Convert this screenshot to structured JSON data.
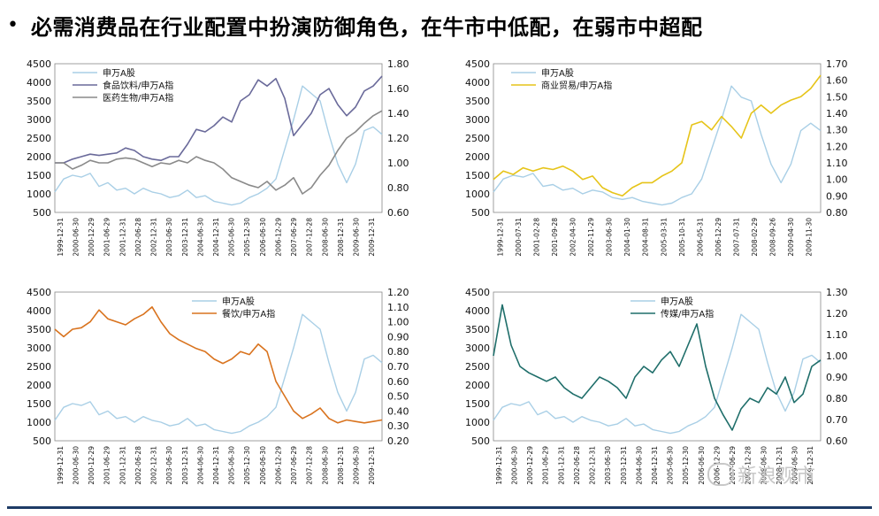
{
  "page": {
    "bullet": "•",
    "title": "必需消费品在行业配置中扮演防御角色，在牛市中低配，在弱市中超配",
    "watermark": "新浪观市"
  },
  "colors": {
    "a_share": "#a9cfe6",
    "food": "#6a6a9a",
    "pharma": "#8a8a8a",
    "retail": "#e6c419",
    "catering": "#d9731e",
    "media": "#1f6e6a"
  },
  "chart_data": [
    {
      "type": "line",
      "legend_position": "top-left",
      "ylim_left": [
        500,
        4500
      ],
      "yticks_left": [
        "500",
        "1000",
        "1500",
        "2000",
        "2500",
        "3000",
        "3500",
        "4000",
        "4500"
      ],
      "ylim_right": [
        0.6,
        1.8
      ],
      "yticks_right": [
        "0.60",
        "0.80",
        "1.00",
        "1.20",
        "1.40",
        "1.60",
        "1.80"
      ],
      "x_tick_labels": [
        "1999-12-31",
        "2000-06-30",
        "2000-12-29",
        "2001-06-29",
        "2001-12-31",
        "2002-06-28",
        "2002-12-31",
        "2003-06-30",
        "2003-12-31",
        "2004-06-30",
        "2004-12-31",
        "2005-06-30",
        "2005-12-30",
        "2006-06-30",
        "2006-12-29",
        "2007-06-29",
        "2007-12-28",
        "2008-06-30",
        "2008-12-31",
        "2009-06-30",
        "2009-12-31"
      ],
      "series": [
        {
          "name": "申万A股",
          "axis": "left",
          "color": "#a9cfe6",
          "values": [
            1050,
            1400,
            1500,
            1450,
            1550,
            1200,
            1300,
            1100,
            1150,
            1000,
            1150,
            1050,
            1000,
            900,
            950,
            1100,
            900,
            950,
            800,
            750,
            700,
            750,
            900,
            1000,
            1150,
            1400,
            2200,
            3000,
            3900,
            3700,
            3500,
            2600,
            1800,
            1300,
            1800,
            2700,
            2800,
            2600
          ]
        },
        {
          "name": "食品饮料/申万A指",
          "axis": "right",
          "color": "#6a6a9a",
          "values": [
            1.0,
            1.0,
            1.03,
            1.05,
            1.07,
            1.06,
            1.07,
            1.08,
            1.12,
            1.1,
            1.05,
            1.03,
            1.02,
            1.05,
            1.05,
            1.15,
            1.27,
            1.25,
            1.3,
            1.37,
            1.33,
            1.5,
            1.55,
            1.67,
            1.62,
            1.68,
            1.52,
            1.22,
            1.31,
            1.4,
            1.55,
            1.6,
            1.47,
            1.38,
            1.45,
            1.58,
            1.62,
            1.7
          ]
        },
        {
          "name": "医药生物/申万A指",
          "axis": "right",
          "color": "#8a8a8a",
          "values": [
            1.0,
            1.0,
            0.95,
            0.98,
            1.02,
            1.0,
            1.0,
            1.03,
            1.04,
            1.03,
            1.0,
            0.97,
            1.0,
            0.99,
            1.02,
            1.0,
            1.05,
            1.02,
            1.0,
            0.95,
            0.88,
            0.85,
            0.82,
            0.8,
            0.85,
            0.78,
            0.82,
            0.88,
            0.75,
            0.8,
            0.9,
            0.98,
            1.1,
            1.2,
            1.25,
            1.32,
            1.38,
            1.42
          ]
        }
      ]
    },
    {
      "type": "line",
      "legend_position": "top-left",
      "ylim_left": [
        500,
        4500
      ],
      "yticks_left": [
        "500",
        "1000",
        "1500",
        "2000",
        "2500",
        "3000",
        "3500",
        "4000",
        "4500"
      ],
      "ylim_right": [
        0.8,
        1.7
      ],
      "yticks_right": [
        "0.80",
        "0.90",
        "1.00",
        "1.10",
        "1.20",
        "1.30",
        "1.40",
        "1.50",
        "1.60",
        "1.70"
      ],
      "x_tick_labels": [
        "1999-12-31",
        "2000-07-31",
        "2001-02-28",
        "2001-09-28",
        "2002-04-30",
        "2002-11-29",
        "2003-06-30",
        "2004-01-30",
        "2004-08-31",
        "2005-03-31",
        "2005-10-31",
        "2006-05-31",
        "2006-12-29",
        "2007-07-31",
        "2008-02-29",
        "2008-09-26",
        "2009-04-30",
        "2009-11-30"
      ],
      "series": [
        {
          "name": "申万A股",
          "axis": "left",
          "color": "#a9cfe6",
          "values": [
            1050,
            1400,
            1500,
            1450,
            1550,
            1200,
            1250,
            1100,
            1150,
            1000,
            1100,
            1050,
            900,
            850,
            900,
            800,
            750,
            700,
            750,
            900,
            1000,
            1400,
            2200,
            3000,
            3900,
            3600,
            3500,
            2600,
            1800,
            1300,
            1800,
            2700,
            2900,
            2700
          ]
        },
        {
          "name": "商业贸易/申万A指",
          "axis": "right",
          "color": "#e6c419",
          "values": [
            1.0,
            1.05,
            1.03,
            1.07,
            1.05,
            1.07,
            1.06,
            1.08,
            1.05,
            1.0,
            1.02,
            0.95,
            0.92,
            0.9,
            0.95,
            0.98,
            0.98,
            1.02,
            1.05,
            1.1,
            1.33,
            1.35,
            1.3,
            1.38,
            1.32,
            1.25,
            1.4,
            1.45,
            1.4,
            1.45,
            1.48,
            1.5,
            1.55,
            1.63
          ]
        }
      ]
    },
    {
      "type": "line",
      "legend_position": "top-right",
      "ylim_left": [
        500,
        4500
      ],
      "yticks_left": [
        "500",
        "1000",
        "1500",
        "2000",
        "2500",
        "3000",
        "3500",
        "4000",
        "4500"
      ],
      "ylim_right": [
        0.2,
        1.2
      ],
      "yticks_right": [
        "0.20",
        "0.30",
        "0.40",
        "0.50",
        "0.60",
        "0.70",
        "0.80",
        "0.90",
        "1.00",
        "1.10",
        "1.20"
      ],
      "x_tick_labels": [
        "1999-12-31",
        "2000-06-30",
        "2000-12-29",
        "2001-06-29",
        "2001-12-31",
        "2002-06-28",
        "2002-12-31",
        "2003-06-30",
        "2003-12-31",
        "2004-06-30",
        "2004-12-31",
        "2005-06-30",
        "2005-12-30",
        "2006-06-30",
        "2006-12-29",
        "2007-06-29",
        "2007-12-28",
        "2008-06-30",
        "2008-12-31",
        "2009-06-30",
        "2009-12-31"
      ],
      "series": [
        {
          "name": "申万A股",
          "axis": "left",
          "color": "#a9cfe6",
          "values": [
            1050,
            1400,
            1500,
            1450,
            1550,
            1200,
            1300,
            1100,
            1150,
            1000,
            1150,
            1050,
            1000,
            900,
            950,
            1100,
            900,
            950,
            800,
            750,
            700,
            750,
            900,
            1000,
            1150,
            1400,
            2200,
            3000,
            3900,
            3700,
            3500,
            2600,
            1800,
            1300,
            1800,
            2700,
            2800,
            2600
          ]
        },
        {
          "name": "餐饮/申万A指",
          "axis": "right",
          "color": "#d9731e",
          "values": [
            0.95,
            0.9,
            0.95,
            0.96,
            1.0,
            1.08,
            1.02,
            1.0,
            0.98,
            1.02,
            1.05,
            1.1,
            1.0,
            0.92,
            0.88,
            0.85,
            0.82,
            0.8,
            0.75,
            0.72,
            0.75,
            0.8,
            0.78,
            0.85,
            0.8,
            0.6,
            0.5,
            0.4,
            0.35,
            0.38,
            0.42,
            0.35,
            0.32,
            0.34,
            0.33,
            0.32,
            0.33,
            0.34
          ]
        }
      ]
    },
    {
      "type": "line",
      "legend_position": "top-right",
      "ylim_left": [
        500,
        4500
      ],
      "yticks_left": [
        "500",
        "1000",
        "1500",
        "2000",
        "2500",
        "3000",
        "3500",
        "4000",
        "4500"
      ],
      "ylim_right": [
        0.6,
        1.3
      ],
      "yticks_right": [
        "0.60",
        "0.70",
        "0.80",
        "0.90",
        "1.00",
        "1.10",
        "1.20",
        "1.30"
      ],
      "x_tick_labels": [
        "1999-12-31",
        "2000-06-30",
        "2000-12-29",
        "2001-06-29",
        "2001-12-31",
        "2002-06-28",
        "2002-12-31",
        "2003-06-30",
        "2003-12-31",
        "2004-06-30",
        "2004-12-31",
        "2005-06-30",
        "2005-12-30",
        "2006-06-30",
        "2006-12-29",
        "2007-06-29",
        "2007-12-28",
        "2008-06-30",
        "2008-12-31",
        "2009-06-30",
        "2009-12-31"
      ],
      "series": [
        {
          "name": "申万A股",
          "axis": "left",
          "color": "#a9cfe6",
          "values": [
            1050,
            1400,
            1500,
            1450,
            1550,
            1200,
            1300,
            1100,
            1150,
            1000,
            1150,
            1050,
            1000,
            900,
            950,
            1100,
            900,
            950,
            800,
            750,
            700,
            750,
            900,
            1000,
            1150,
            1400,
            2200,
            3000,
            3900,
            3700,
            3500,
            2600,
            1800,
            1300,
            1800,
            2700,
            2800,
            2600
          ]
        },
        {
          "name": "传媒/申万A指",
          "axis": "right",
          "color": "#1f6e6a",
          "values": [
            1.0,
            1.24,
            1.05,
            0.95,
            0.92,
            0.9,
            0.88,
            0.9,
            0.85,
            0.82,
            0.8,
            0.85,
            0.9,
            0.88,
            0.85,
            0.8,
            0.9,
            0.95,
            0.92,
            0.98,
            1.02,
            0.95,
            1.05,
            1.15,
            0.95,
            0.8,
            0.72,
            0.65,
            0.75,
            0.8,
            0.78,
            0.85,
            0.82,
            0.9,
            0.78,
            0.82,
            0.95,
            0.98
          ]
        }
      ]
    }
  ]
}
